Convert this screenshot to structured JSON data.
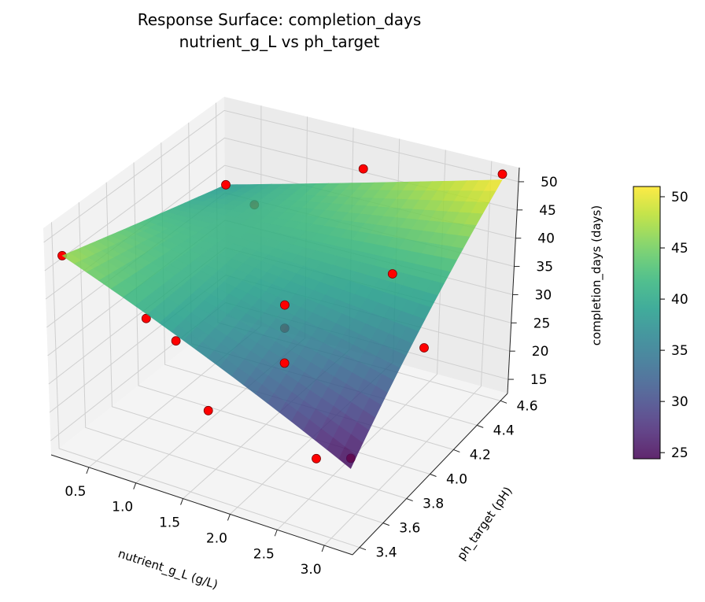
{
  "chart_data": {
    "type": "surface3d",
    "title": "Response Surface: completion_days",
    "subtitle": "nutrient_g_L vs ph_target",
    "x_axis": {
      "label": "nutrient_g_L (g/L)",
      "range": [
        0.1,
        3.3
      ],
      "ticks": [
        0.5,
        1.0,
        1.5,
        2.0,
        2.5,
        3.0
      ],
      "tick_labels": [
        "0.5",
        "1.0",
        "1.5",
        "2.0",
        "2.5",
        "3.0"
      ]
    },
    "y_axis": {
      "label": "ph_target (pH)",
      "range": [
        3.34,
        4.66
      ],
      "ticks": [
        3.4,
        3.6,
        3.8,
        4.0,
        4.2,
        4.4,
        4.6
      ],
      "tick_labels": [
        "3.4",
        "3.6",
        "3.8",
        "4.0",
        "4.2",
        "4.4",
        "4.6"
      ]
    },
    "z_axis": {
      "label": "completion_days (days)",
      "range": [
        12.5,
        52.5
      ],
      "ticks": [
        15,
        20,
        25,
        30,
        35,
        40,
        45,
        50
      ],
      "tick_labels": [
        "15",
        "20",
        "25",
        "30",
        "35",
        "40",
        "45",
        "50"
      ]
    },
    "surface": {
      "x_range": [
        0.2,
        3.2
      ],
      "y_range": [
        3.4,
        4.6
      ],
      "corner_values": {
        "x_min_y_min": 47.0,
        "x_max_y_min": 24.4,
        "x_min_y_max": 38.0,
        "x_max_y_max": 51.0
      },
      "colormap": "viridis",
      "alpha": 0.85
    },
    "colorbar": {
      "min": 24.4,
      "max": 51.0,
      "ticks": [
        25,
        30,
        35,
        40,
        45,
        50
      ],
      "tick_labels": [
        "25",
        "30",
        "35",
        "40",
        "45",
        "50"
      ]
    },
    "observations": [
      {
        "x": 0.2,
        "y": 3.4,
        "z": 47
      },
      {
        "x": 0.2,
        "y": 4.6,
        "z": 38
      },
      {
        "x": 0.2,
        "y": 4.0,
        "z": 25
      },
      {
        "x": 1.7,
        "y": 3.4,
        "z": 27
      },
      {
        "x": 1.7,
        "y": 4.6,
        "z": 47
      },
      {
        "x": 1.7,
        "y": 4.0,
        "z": 30
      },
      {
        "x": 1.7,
        "y": 4.0,
        "z": 34
      },
      {
        "x": 1.7,
        "y": 4.0,
        "z": 24
      },
      {
        "x": 3.2,
        "y": 3.4,
        "z": 26
      },
      {
        "x": 3.2,
        "y": 4.6,
        "z": 52
      },
      {
        "x": 3.2,
        "y": 4.0,
        "z": 33
      },
      {
        "x": 0.95,
        "y": 3.7,
        "z": 30
      },
      {
        "x": 2.45,
        "y": 3.7,
        "z": 17
      },
      {
        "x": 0.95,
        "y": 4.3,
        "z": 43
      },
      {
        "x": 2.45,
        "y": 4.3,
        "z": 37
      }
    ],
    "observation_color": "#ff0000",
    "grid": true
  }
}
